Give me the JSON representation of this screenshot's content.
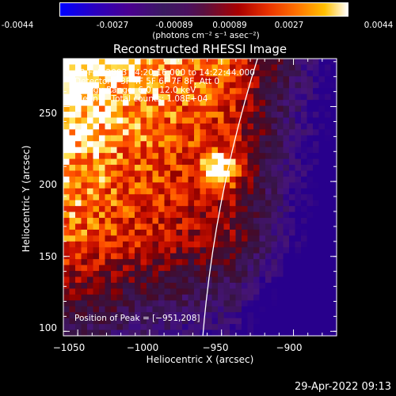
{
  "colorbar": {
    "ticks": [
      "-0.0044",
      "-0.0027",
      "-0.00089",
      "0.00089",
      "0.0027",
      "0.0044"
    ],
    "units": "(photons cm⁻² s⁻¹ asec⁻²)"
  },
  "chart_data": {
    "type": "heatmap",
    "title": "Reconstructed RHESSI Image",
    "xlabel": "Heliocentric X (arcsec)",
    "ylabel": "Heliocentric Y (arcsec)",
    "xlim": [
      -1060,
      -870
    ],
    "ylim": [
      97,
      282
    ],
    "xticks": [
      -1050,
      -1000,
      -950,
      -900
    ],
    "yticks": [
      100,
      150,
      200,
      250
    ],
    "xtick_labels": [
      "−1050",
      "−1000",
      "−950",
      "−900"
    ],
    "ytick_labels": [
      "100",
      "150",
      "200",
      "250"
    ],
    "color_range": [
      -0.0044,
      0.0044
    ],
    "peak": [
      -951,
      208
    ],
    "annotations": [
      "28-Feb-2003 14:20:16.000 to 14:22:44.000",
      "Detectors: 3F 4F 5F 6F 7F 8F, Att 0",
      "Energy Range: 6.0 - 12.0 keV",
      "Clean     Total counts: 1.08E+04"
    ],
    "peak_label": "Position of Peak = [−951,208]"
  },
  "timestamp": "29-Apr-2022 09:13"
}
